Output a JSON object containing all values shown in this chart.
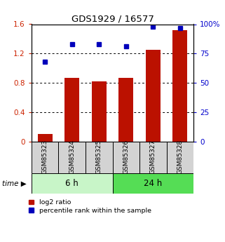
{
  "title": "GDS1929 / 16577",
  "samples": [
    "GSM85323",
    "GSM85324",
    "GSM85325",
    "GSM85326",
    "GSM85327",
    "GSM85328"
  ],
  "log2_ratio": [
    0.1,
    0.87,
    0.82,
    0.87,
    1.25,
    1.52
  ],
  "percentile_rank": [
    68,
    83,
    83,
    81,
    98,
    97
  ],
  "group_labels": [
    "6 h",
    "24 h"
  ],
  "group_ranges": [
    [
      0,
      3
    ],
    [
      3,
      6
    ]
  ],
  "group_colors_light": [
    "#c8f5c8",
    "#55dd55"
  ],
  "bar_color": "#bb1100",
  "dot_color": "#0000bb",
  "left_ylim": [
    0,
    1.6
  ],
  "left_yticks": [
    0,
    0.4,
    0.8,
    1.2,
    1.6
  ],
  "right_yticks": [
    0,
    25,
    50,
    75,
    100
  ],
  "right_ylim": [
    0,
    100
  ],
  "left_tick_color": "#cc2200",
  "right_tick_color": "#0000cc",
  "legend_labels": [
    "log2 ratio",
    "percentile rank within the sample"
  ],
  "time_label": "time",
  "grid_yticks": [
    0.4,
    0.8,
    1.2
  ]
}
